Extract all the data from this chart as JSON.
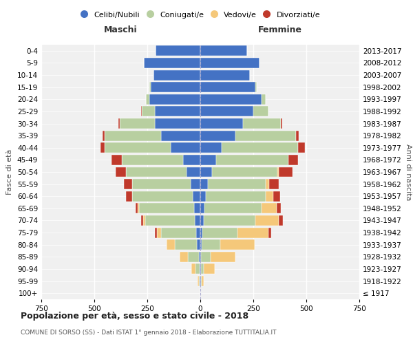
{
  "age_groups": [
    "100+",
    "95-99",
    "90-94",
    "85-89",
    "80-84",
    "75-79",
    "70-74",
    "65-69",
    "60-64",
    "55-59",
    "50-54",
    "45-49",
    "40-44",
    "35-39",
    "30-34",
    "25-29",
    "20-24",
    "15-19",
    "10-14",
    "5-9",
    "0-4"
  ],
  "birth_years": [
    "≤ 1917",
    "1918-1922",
    "1923-1927",
    "1928-1932",
    "1933-1937",
    "1938-1942",
    "1943-1947",
    "1948-1952",
    "1953-1957",
    "1958-1962",
    "1963-1967",
    "1968-1972",
    "1973-1977",
    "1978-1982",
    "1983-1987",
    "1988-1992",
    "1993-1997",
    "1998-2002",
    "2003-2007",
    "2008-2012",
    "2013-2017"
  ],
  "male": {
    "celibi": [
      0,
      2,
      4,
      8,
      15,
      20,
      25,
      30,
      35,
      45,
      65,
      80,
      140,
      185,
      215,
      215,
      240,
      235,
      220,
      265,
      210
    ],
    "coniugati": [
      0,
      5,
      18,
      50,
      105,
      165,
      235,
      260,
      285,
      275,
      285,
      290,
      310,
      265,
      165,
      60,
      15,
      5,
      0,
      0,
      0
    ],
    "vedovi": [
      0,
      5,
      20,
      40,
      40,
      20,
      10,
      5,
      0,
      0,
      0,
      0,
      0,
      0,
      0,
      0,
      0,
      0,
      0,
      0,
      0
    ],
    "divorziati": [
      0,
      0,
      0,
      0,
      0,
      10,
      10,
      10,
      30,
      40,
      50,
      50,
      20,
      10,
      5,
      5,
      0,
      0,
      0,
      0,
      0
    ]
  },
  "female": {
    "nubili": [
      0,
      2,
      2,
      4,
      5,
      10,
      15,
      20,
      25,
      35,
      55,
      75,
      100,
      165,
      200,
      250,
      290,
      260,
      235,
      280,
      220
    ],
    "coniugate": [
      0,
      5,
      15,
      45,
      90,
      165,
      245,
      270,
      285,
      275,
      310,
      340,
      360,
      285,
      180,
      70,
      20,
      5,
      0,
      0,
      0
    ],
    "vedove": [
      0,
      10,
      50,
      115,
      160,
      145,
      110,
      70,
      35,
      15,
      5,
      0,
      0,
      0,
      0,
      0,
      0,
      0,
      0,
      0,
      0
    ],
    "divorziate": [
      0,
      0,
      0,
      0,
      0,
      15,
      20,
      20,
      30,
      45,
      65,
      45,
      35,
      15,
      5,
      0,
      0,
      0,
      0,
      0,
      0
    ]
  },
  "colors": {
    "celibi": "#4472c4",
    "coniugati": "#b8cfa0",
    "vedovi": "#f5c87a",
    "divorziati": "#c0392b"
  },
  "xlim": 750,
  "title_main": "Popolazione per età, sesso e stato civile - 2018",
  "title_sub": "COMUNE DI SORSO (SS) - Dati ISTAT 1° gennaio 2018 - Elaborazione TUTTITALIA.IT",
  "label_maschi": "Maschi",
  "label_femmine": "Femmine",
  "label_fasceta": "Fasce di età",
  "label_anni": "Anni di nascita",
  "legend_labels": [
    "Celibi/Nubili",
    "Coniugati/e",
    "Vedovi/e",
    "Divorziati/e"
  ],
  "bg_color": "#ffffff",
  "plot_bg": "#f0f0f0",
  "grid_color": "#ffffff"
}
